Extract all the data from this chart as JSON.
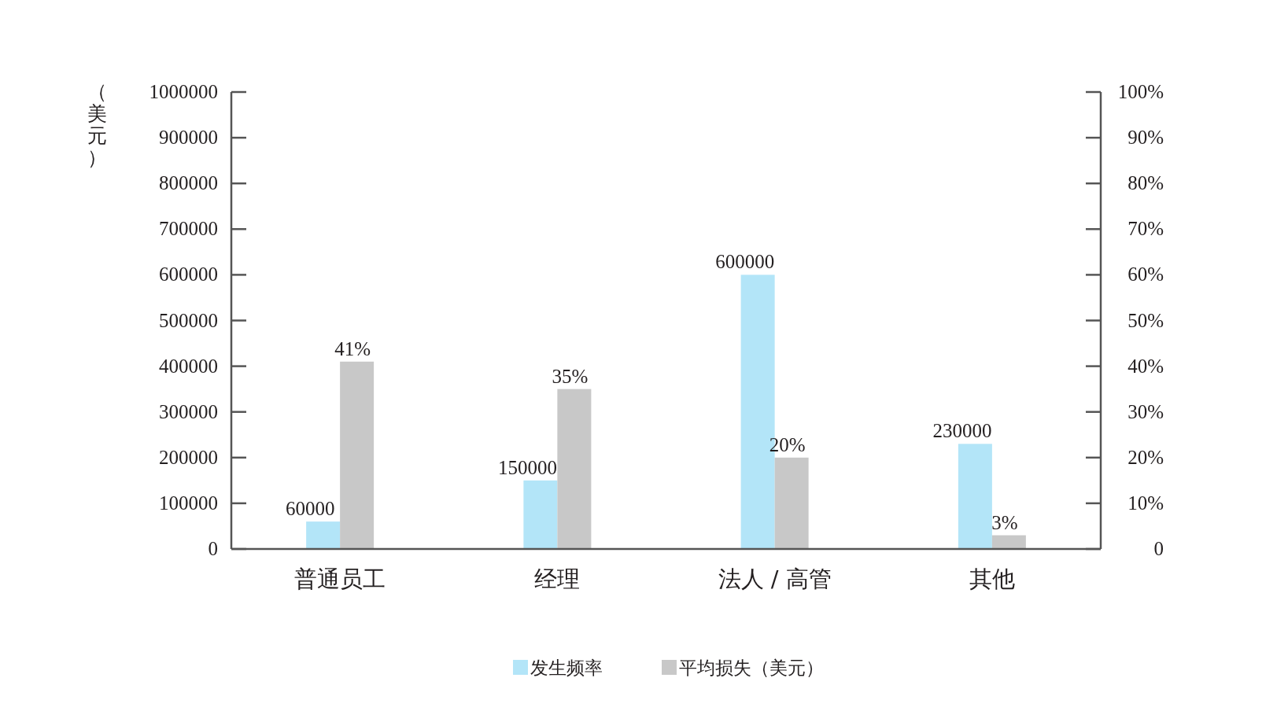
{
  "chart_data": {
    "type": "bar",
    "categories": [
      "普通员工",
      "经理",
      "法人 / 高管",
      "其他"
    ],
    "ylabel": "（美元）",
    "series": [
      {
        "name": "发生频率",
        "color": "#b3e5f8",
        "axis": "y",
        "values": [
          60000,
          150000,
          600000,
          230000
        ],
        "value_labels": [
          "60000",
          "150000",
          "600000",
          "230000"
        ]
      },
      {
        "name": "平均损失（美元）",
        "color": "#c8c8c8",
        "axis": "y2",
        "values": [
          41,
          35,
          20,
          3
        ],
        "value_labels": [
          "41%",
          "35%",
          "20%",
          "3%"
        ]
      }
    ],
    "ylim": [
      0,
      1000000
    ],
    "yticks": [
      0,
      100000,
      200000,
      300000,
      400000,
      500000,
      600000,
      700000,
      800000,
      900000,
      1000000
    ],
    "y2lim": [
      0,
      100
    ],
    "y2ticks": [
      0,
      {
        "value": 10,
        "label": "10%"
      },
      {
        "value": 20,
        "label": "20%"
      },
      {
        "value": 30,
        "label": "30%"
      },
      {
        "value": 40,
        "label": "40%"
      },
      {
        "value": 50,
        "label": "50%"
      },
      {
        "value": 60,
        "label": "60%"
      },
      {
        "value": 70,
        "label": "70%"
      },
      {
        "value": 80,
        "label": "80%"
      },
      {
        "value": 90,
        "label": "90%"
      },
      {
        "value": 100,
        "label": "100%"
      }
    ],
    "legend": "bottom"
  }
}
